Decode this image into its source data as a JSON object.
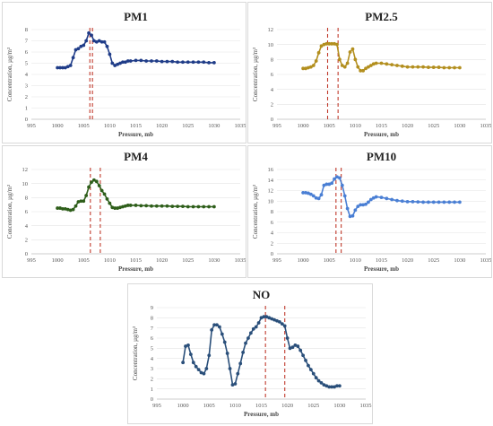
{
  "chart_data": [
    {
      "type": "line",
      "title": "PM1",
      "xlabel": "Pressure, mb",
      "ylabel": "Concentration, µg/m³",
      "xlim": [
        995,
        1035
      ],
      "ylim": [
        0,
        8
      ],
      "xticks": [
        995,
        1000,
        1005,
        1010,
        1015,
        1020,
        1025,
        1030,
        1035
      ],
      "yticks": [
        0,
        1,
        2,
        3,
        4,
        5,
        6,
        7,
        8
      ],
      "color": "#1f3c88",
      "vlines": [
        1006.2,
        1006.7
      ],
      "x": [
        1000,
        1000.5,
        1001,
        1001.5,
        1002,
        1002.5,
        1003,
        1003.5,
        1004,
        1004.5,
        1005,
        1005.5,
        1006,
        1006.5,
        1007,
        1007.5,
        1008,
        1008.5,
        1009,
        1009.5,
        1010,
        1010.5,
        1011,
        1011.5,
        1012,
        1012.5,
        1013,
        1013.5,
        1014,
        1015,
        1016,
        1017,
        1018,
        1019,
        1020,
        1021,
        1022,
        1023,
        1024,
        1025,
        1026,
        1027,
        1028,
        1029,
        1030
      ],
      "y": [
        4.6,
        4.6,
        4.6,
        4.6,
        4.7,
        4.8,
        5.5,
        6.2,
        6.3,
        6.5,
        6.6,
        7.0,
        7.7,
        7.5,
        7.0,
        6.9,
        7.0,
        6.9,
        6.9,
        6.5,
        5.8,
        5.0,
        4.8,
        4.9,
        5.0,
        5.1,
        5.1,
        5.2,
        5.2,
        5.25,
        5.25,
        5.2,
        5.2,
        5.2,
        5.15,
        5.15,
        5.15,
        5.1,
        5.1,
        5.1,
        5.1,
        5.1,
        5.1,
        5.05,
        5.05
      ]
    },
    {
      "type": "line",
      "title": "PM2.5",
      "xlabel": "Pressure, mb",
      "ylabel": "Concentration, µg/m³",
      "xlim": [
        995,
        1035
      ],
      "ylim": [
        0,
        12
      ],
      "xticks": [
        995,
        1000,
        1005,
        1010,
        1015,
        1020,
        1025,
        1030,
        1035
      ],
      "yticks": [
        0,
        2,
        4,
        6,
        8,
        10,
        12
      ],
      "color": "#b38f1f",
      "vlines": [
        1004.7,
        1006.7
      ],
      "x": [
        1000,
        1000.5,
        1001,
        1001.5,
        1002,
        1002.5,
        1003,
        1003.5,
        1004,
        1004.5,
        1005,
        1005.5,
        1006,
        1006.5,
        1007,
        1007.5,
        1008,
        1008.5,
        1009,
        1009.5,
        1010,
        1010.5,
        1011,
        1011.5,
        1012,
        1012.5,
        1013,
        1013.5,
        1014,
        1015,
        1016,
        1017,
        1018,
        1019,
        1020,
        1021,
        1022,
        1023,
        1024,
        1025,
        1026,
        1027,
        1028,
        1029,
        1030
      ],
      "y": [
        6.8,
        6.8,
        6.9,
        7.0,
        7.2,
        7.8,
        8.9,
        9.8,
        10.0,
        10.1,
        10.1,
        10.1,
        10.1,
        10.0,
        8.0,
        7.2,
        7.0,
        7.5,
        9.0,
        9.4,
        8.0,
        7.0,
        6.5,
        6.5,
        6.8,
        7.0,
        7.2,
        7.4,
        7.5,
        7.5,
        7.4,
        7.3,
        7.2,
        7.1,
        7.0,
        7.0,
        7.0,
        7.0,
        6.95,
        6.95,
        6.95,
        6.9,
        6.9,
        6.9,
        6.9
      ]
    },
    {
      "type": "line",
      "title": "PM4",
      "xlabel": "Pressure, mb",
      "ylabel": "Concentration, µg/m³",
      "xlim": [
        995,
        1035
      ],
      "ylim": [
        0,
        12
      ],
      "xticks": [
        995,
        1000,
        1005,
        1010,
        1015,
        1020,
        1025,
        1030,
        1035
      ],
      "yticks": [
        0,
        2,
        4,
        6,
        8,
        10,
        12
      ],
      "color": "#2e5e1a",
      "vlines": [
        1006.3,
        1008.2
      ],
      "x": [
        1000,
        1000.5,
        1001,
        1001.5,
        1002,
        1002.5,
        1003,
        1003.5,
        1004,
        1004.5,
        1005,
        1005.5,
        1006,
        1006.5,
        1007,
        1007.5,
        1008,
        1008.5,
        1009,
        1009.5,
        1010,
        1010.5,
        1011,
        1011.5,
        1012,
        1012.5,
        1013,
        1013.5,
        1014,
        1015,
        1016,
        1017,
        1018,
        1019,
        1020,
        1021,
        1022,
        1023,
        1024,
        1025,
        1026,
        1027,
        1028,
        1029,
        1030
      ],
      "y": [
        6.5,
        6.5,
        6.4,
        6.4,
        6.3,
        6.2,
        6.3,
        6.8,
        7.4,
        7.5,
        7.5,
        8.3,
        9.5,
        10.2,
        10.5,
        10.3,
        9.7,
        9.0,
        8.5,
        7.8,
        7.2,
        6.6,
        6.5,
        6.5,
        6.6,
        6.7,
        6.8,
        6.9,
        6.9,
        6.9,
        6.85,
        6.85,
        6.8,
        6.8,
        6.8,
        6.8,
        6.75,
        6.75,
        6.75,
        6.7,
        6.7,
        6.7,
        6.7,
        6.7,
        6.7
      ]
    },
    {
      "type": "line",
      "title": "PM10",
      "xlabel": "Pressure, mb",
      "ylabel": "Concentration, µg/m³",
      "xlim": [
        995,
        1035
      ],
      "ylim": [
        0,
        16
      ],
      "xticks": [
        995,
        1000,
        1005,
        1010,
        1015,
        1020,
        1025,
        1030,
        1035
      ],
      "yticks": [
        0,
        2,
        4,
        6,
        8,
        10,
        12,
        14,
        16
      ],
      "color": "#4a7fd4",
      "vlines": [
        1006.3,
        1007.3
      ],
      "x": [
        1000,
        1000.5,
        1001,
        1001.5,
        1002,
        1002.5,
        1003,
        1003.5,
        1004,
        1004.5,
        1005,
        1005.5,
        1006,
        1006.5,
        1007,
        1007.5,
        1008,
        1008.5,
        1009,
        1009.5,
        1010,
        1010.5,
        1011,
        1011.5,
        1012,
        1012.5,
        1013,
        1013.5,
        1014,
        1015,
        1016,
        1017,
        1018,
        1019,
        1020,
        1021,
        1022,
        1023,
        1024,
        1025,
        1026,
        1027,
        1028,
        1029,
        1030
      ],
      "y": [
        11.6,
        11.6,
        11.5,
        11.3,
        11.0,
        10.6,
        10.5,
        11.2,
        13.0,
        13.2,
        13.2,
        13.4,
        14.2,
        14.6,
        14.4,
        13.0,
        11.0,
        8.6,
        7.1,
        7.2,
        8.3,
        9.0,
        9.3,
        9.3,
        9.4,
        9.8,
        10.3,
        10.6,
        10.8,
        10.7,
        10.5,
        10.3,
        10.1,
        10.0,
        9.9,
        9.9,
        9.85,
        9.8,
        9.8,
        9.8,
        9.8,
        9.8,
        9.8,
        9.8,
        9.8
      ]
    },
    {
      "type": "line",
      "title": "NO",
      "xlabel": "Pressure, mb",
      "ylabel": "Concentration, µg/m³",
      "xlim": [
        995,
        1035
      ],
      "ylim": [
        0,
        9
      ],
      "xticks": [
        995,
        1000,
        1005,
        1010,
        1015,
        1020,
        1025,
        1030,
        1035
      ],
      "yticks": [
        0,
        1,
        2,
        3,
        4,
        5,
        6,
        7,
        8,
        9
      ],
      "color": "#2a4f7a",
      "vlines": [
        1015.8,
        1019.5
      ],
      "x": [
        1000,
        1000.5,
        1001,
        1001.5,
        1002,
        1002.5,
        1003,
        1003.5,
        1004,
        1004.5,
        1005,
        1005.5,
        1006,
        1006.5,
        1007,
        1007.5,
        1008,
        1008.5,
        1009,
        1009.5,
        1010,
        1010.5,
        1011,
        1011.5,
        1012,
        1012.5,
        1013,
        1013.5,
        1014,
        1014.5,
        1015,
        1015.5,
        1016,
        1016.5,
        1017,
        1017.5,
        1018,
        1018.5,
        1019,
        1019.5,
        1020,
        1020.5,
        1021,
        1021.5,
        1022,
        1022.5,
        1023,
        1023.5,
        1024,
        1024.5,
        1025,
        1025.5,
        1026,
        1026.5,
        1027,
        1027.5,
        1028,
        1028.5,
        1029,
        1029.5,
        1030
      ],
      "y": [
        3.6,
        5.2,
        5.3,
        4.4,
        3.6,
        3.2,
        2.9,
        2.6,
        2.5,
        3.0,
        4.3,
        6.8,
        7.3,
        7.3,
        7.1,
        6.4,
        5.6,
        4.5,
        3.0,
        1.4,
        1.5,
        2.5,
        3.5,
        4.6,
        5.5,
        6.0,
        6.5,
        6.9,
        7.1,
        7.5,
        8.0,
        8.1,
        8.1,
        8.0,
        7.9,
        7.8,
        7.7,
        7.6,
        7.4,
        7.2,
        6.0,
        5.0,
        5.1,
        5.3,
        5.2,
        4.8,
        4.3,
        3.8,
        3.3,
        2.9,
        2.5,
        2.1,
        1.8,
        1.6,
        1.4,
        1.3,
        1.2,
        1.2,
        1.2,
        1.3,
        1.3
      ]
    }
  ]
}
